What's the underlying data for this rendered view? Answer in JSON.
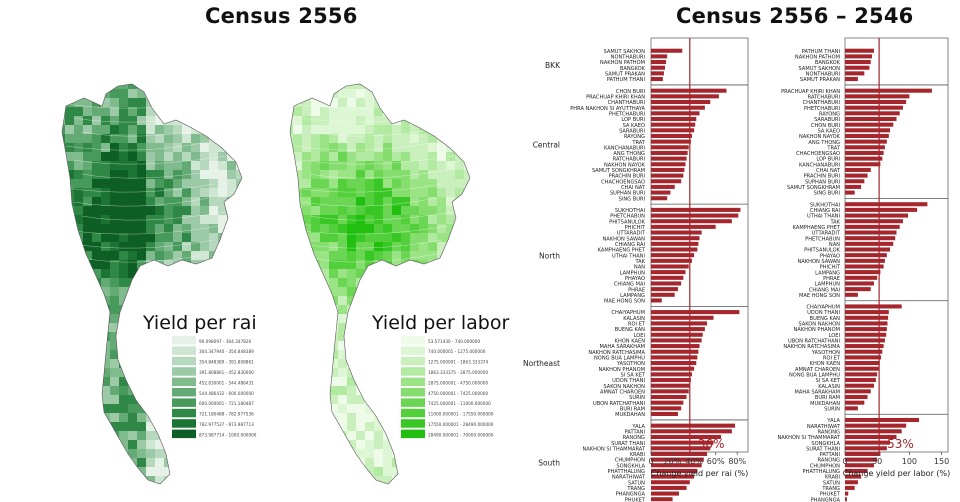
{
  "titles": {
    "left": "Census 2556",
    "right": "Census 2556 – 2546"
  },
  "maps": [
    {
      "label": "Yield per rai",
      "palette": [
        "#e6f2e8",
        "#cfe6d3",
        "#b6d8bd",
        "#9ccaa6",
        "#80bb8e",
        "#63aa74",
        "#479a5c",
        "#2f8845",
        "#1c7434",
        "#0e5f25"
      ],
      "legend": [
        "90.098097 - 304.347826",
        "304.347940 - 354.848389",
        "354.848389 - 391.808861",
        "391.808861 - 452.830000",
        "452.830001 - 544.486431",
        "544.486432 - 600.000000",
        "600.000001 - 721.180487",
        "721.180488 - 782.977536",
        "782.977537 - 873.987713",
        "873.987714 - 1000.000000"
      ]
    },
    {
      "label": "Yield per labor",
      "palette": [
        "#eefbe9",
        "#ddf6d3",
        "#c9f0bc",
        "#b2eaa2",
        "#9be486",
        "#84dd6c",
        "#6bd653",
        "#52cf3b",
        "#38c724",
        "#20bf10"
      ],
      "legend": [
        "53.571430 - 740.000000",
        "740.000001 - 1275.000000",
        "1275.000001 - 1863.333374",
        "1863.333375 - 2875.000000",
        "2875.000001 - 4750.000000",
        "4750.000001 - 7425.000000",
        "7425.000001 - 11000.000000",
        "11000.000001 - 17550.000000",
        "17550.000001 - 28490.000000",
        "28490.000001 - 70000.000000"
      ]
    }
  ],
  "colors": {
    "bar": "#a5262c",
    "median": "#a5262c",
    "axis": "#555555"
  },
  "chart_data": [
    {
      "type": "bar",
      "orientation": "horizontal",
      "xlabel": "Change yield per rai (%)",
      "xlim": [
        0,
        90
      ],
      "xticks": [
        "0",
        "20%",
        "40%",
        "60%",
        "80%"
      ],
      "xtick_values": [
        0,
        20,
        40,
        60,
        80
      ],
      "median_label": "36%",
      "median_value": 36,
      "groups": [
        {
          "name": "BKK",
          "categories": [
            "SAMUT SAKHON",
            "NONTHABURI",
            "NAKHON PATHOM",
            "BANGKOK",
            "SAMUT PRAKAN",
            "PATHUM THANI"
          ],
          "values": [
            29,
            15,
            14,
            13,
            12,
            11
          ]
        },
        {
          "name": "Central",
          "categories": [
            "CHON BURI",
            "PRACHUAP KHIRI KHAN",
            "CHANTHABURI",
            "PHRA NAKHON SI AYUTTHAYA",
            "PHETCHABURI",
            "LOP BURI",
            "SA KAEO",
            "SARABURI",
            "RAYONG",
            "TRAT",
            "KANCHANABURI",
            "ANG THONG",
            "RATCHABURI",
            "NAKHON NAYOK",
            "SAMUT SONGKHRAM",
            "PRACHIN BURI",
            "CHACHOENGSAO",
            "CHAI NAT",
            "SUPHAN BURI",
            "SING BURI"
          ],
          "values": [
            70,
            63,
            55,
            50,
            45,
            42,
            41,
            40,
            38,
            37,
            35,
            34,
            33,
            32,
            31,
            30,
            28,
            22,
            18,
            15
          ]
        },
        {
          "name": "North",
          "categories": [
            "SUKHOTHAI",
            "PHETCHABUN",
            "PHITSANULOK",
            "PHICHIT",
            "UTTARADIT",
            "NAKHON SAWAN",
            "CHIANG RAI",
            "KAMPHAENG PHET",
            "UTHAI THANI",
            "TAK",
            "NAN",
            "LAMPHUN",
            "PHAYAO",
            "CHIANG MAI",
            "PHRAE",
            "LAMPANG",
            "MAE HONG SON"
          ],
          "values": [
            83,
            81,
            75,
            60,
            47,
            45,
            44,
            43,
            40,
            38,
            35,
            32,
            30,
            28,
            25,
            22,
            10
          ]
        },
        {
          "name": "Northeast",
          "categories": [
            "CHAIYAPHUM",
            "KALASIN",
            "ROI ET",
            "BUENG KAN",
            "LOEI",
            "KHON KAEN",
            "MAHA SARAKHAM",
            "NAKHON RATCHASIMA",
            "NONG BUA LAMPHU",
            "YASOTHON",
            "NAKHON PHANOM",
            "SI SA KET",
            "UDON THANI",
            "SAKON NAKHON",
            "AMNAT CHAROEN",
            "SURIN",
            "UBON RATCHATHANI",
            "BURI RAM",
            "MUKDAHAN"
          ],
          "values": [
            82,
            58,
            52,
            50,
            48,
            47,
            45,
            44,
            43,
            42,
            40,
            38,
            37,
            36,
            35,
            33,
            30,
            28,
            25
          ]
        },
        {
          "name": "South",
          "categories": [
            "YALA",
            "PATTANI",
            "RANONG",
            "SURAT THANI",
            "NAKHON SI THAMMARAT",
            "KRABI",
            "CHUMPHON",
            "SONGKHLA",
            "PHATTHALUNG",
            "NARATHIWAT",
            "SATUN",
            "TRANG",
            "PHANGNGA",
            "PHUKET"
          ],
          "values": [
            78,
            75,
            65,
            58,
            55,
            52,
            49,
            47,
            43,
            40,
            36,
            33,
            26,
            20
          ]
        }
      ]
    },
    {
      "type": "bar",
      "orientation": "horizontal",
      "xlabel": "Change yield per labor (%)",
      "xlim": [
        0,
        160
      ],
      "xticks": [
        "0",
        "50",
        "100",
        "150"
      ],
      "xtick_values": [
        0,
        50,
        100,
        150
      ],
      "median_label": "53%",
      "median_value": 53,
      "groups": [
        {
          "name": "BKK",
          "categories": [
            "PATHUM THANI",
            "NAKHON PATHOM",
            "BANGKOK",
            "SAMUT SAKHON",
            "NONTHABURI",
            "SAMUT PRAKAN"
          ],
          "values": [
            45,
            42,
            40,
            38,
            30,
            20
          ]
        },
        {
          "name": "Central",
          "categories": [
            "PRACHUAP KHIRI KHAN",
            "RATCHABURI",
            "CHANTHABURI",
            "PHETCHABURI",
            "RAYONG",
            "SARABURI",
            "CHON BURI",
            "SA KAEO",
            "NAKHON NAYOK",
            "ANG THONG",
            "TRAT",
            "CHACHOENGSAO",
            "LOP BURI",
            "KANCHANABURI",
            "CHAI NAT",
            "PRACHIN BURI",
            "SUPHAN BURI",
            "SAMUT SONGKHRAM",
            "SING BURI"
          ],
          "values": [
            135,
            100,
            95,
            90,
            85,
            80,
            75,
            70,
            68,
            65,
            62,
            60,
            58,
            55,
            40,
            35,
            30,
            25,
            15
          ]
        },
        {
          "name": "North",
          "categories": [
            "SUKHOTHAI",
            "CHIANG RAI",
            "UTHAI THANI",
            "TAK",
            "KAMPHAENG PHET",
            "UTTARADIT",
            "PHETCHABUN",
            "NAN",
            "PHITSANULOK",
            "PHAYAO",
            "NAKHON SAWAN",
            "PHICHIT",
            "LAMPANG",
            "PHRAE",
            "LAMPHUN",
            "CHIANG MAI",
            "MAE HONG SON"
          ],
          "values": [
            128,
            112,
            98,
            90,
            85,
            80,
            78,
            75,
            70,
            65,
            62,
            60,
            55,
            50,
            45,
            40,
            20
          ]
        },
        {
          "name": "Northeast",
          "categories": [
            "CHAIYAPHUM",
            "UDON THANI",
            "BUENG KAN",
            "SAKON NAKHON",
            "NAKHON PHANOM",
            "LOEI",
            "UBON RATCHATHANI",
            "NAKHON RATCHASIMA",
            "YASOTHON",
            "ROI ET",
            "KHON KAEN",
            "AMNAT CHAROEN",
            "NONG BUA LAMPHU",
            "SI SA KET",
            "KALASIN",
            "MAHA SARAKHAM",
            "BURI RAM",
            "MUKDAHAN",
            "SURIN"
          ],
          "values": [
            88,
            68,
            67,
            66,
            65,
            64,
            62,
            60,
            58,
            56,
            54,
            52,
            50,
            48,
            45,
            40,
            35,
            30,
            20
          ]
        },
        {
          "name": "South",
          "categories": [
            "YALA",
            "NARATHIWAT",
            "RANONG",
            "NAKHON SI THAMMARAT",
            "SONGKHLA",
            "SURAT THANI",
            "PATTANI",
            "RANONG",
            "CHUMPHON",
            "PHATTHALUNG",
            "KRABI",
            "SATUN",
            "TRANG",
            "PHUKET",
            "PHANGNGA"
          ],
          "values": [
            115,
            95,
            88,
            80,
            70,
            65,
            55,
            50,
            45,
            35,
            25,
            20,
            15,
            5,
            3
          ]
        }
      ]
    }
  ]
}
